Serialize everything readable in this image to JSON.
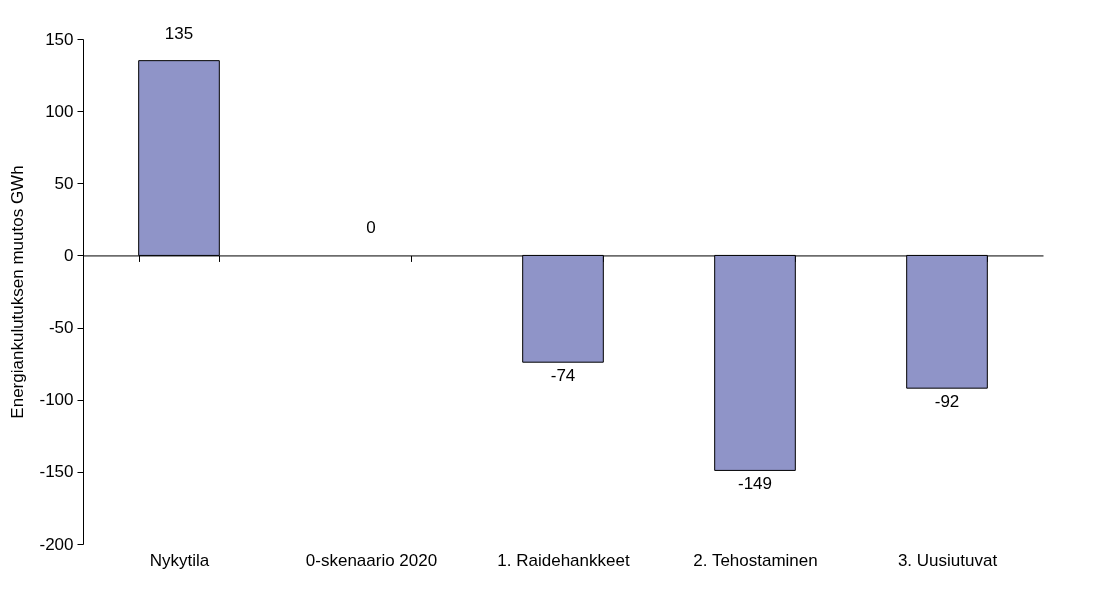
{
  "chart_data": {
    "type": "bar",
    "ylabel": "Energiankulutuksen muutos GWh",
    "categories": [
      "Nykytila",
      "0-skenaario 2020",
      "1. Raidehankkeet",
      "2. Tehostaminen",
      "3. Uusiutuvat"
    ],
    "values": [
      135,
      0,
      -74,
      -149,
      -92
    ],
    "color": "#8f94c8",
    "ylim": [
      -200,
      150
    ],
    "yticks": [
      -200,
      -150,
      -100,
      -50,
      0,
      50,
      100,
      150
    ],
    "data_labels": true
  }
}
